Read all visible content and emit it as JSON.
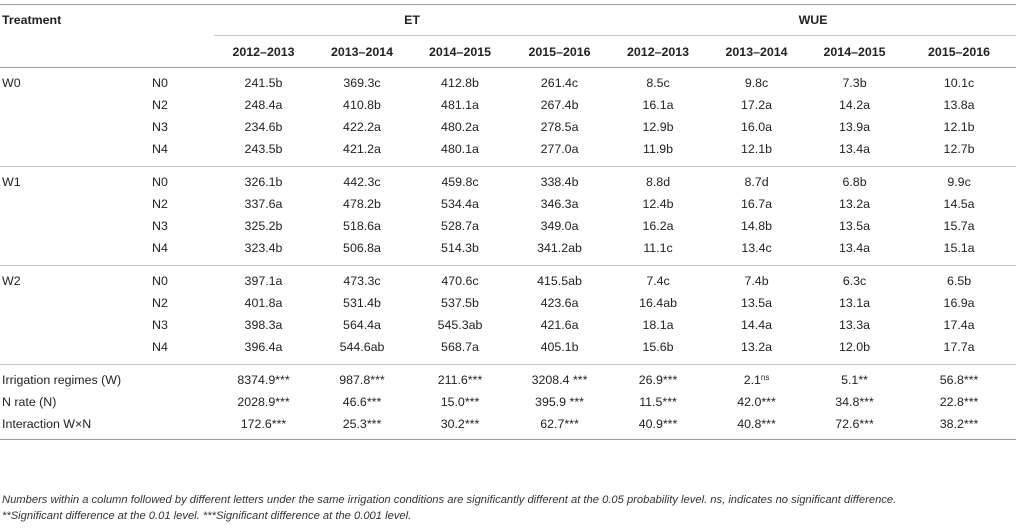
{
  "header": {
    "treatment": "Treatment",
    "et": "ET",
    "wue": "WUE",
    "years": [
      "2012–2013",
      "2013–2014",
      "2014–2015",
      "2015–2016"
    ]
  },
  "groups": [
    {
      "name": "W0",
      "rows": [
        {
          "n": "N0",
          "et": [
            "241.5b",
            "369.3c",
            "412.8b",
            "261.4c"
          ],
          "wue": [
            "8.5c",
            "9.8c",
            "7.3b",
            "10.1c"
          ]
        },
        {
          "n": "N2",
          "et": [
            "248.4a",
            "410.8b",
            "481.1a",
            "267.4b"
          ],
          "wue": [
            "16.1a",
            "17.2a",
            "14.2a",
            "13.8a"
          ]
        },
        {
          "n": "N3",
          "et": [
            "234.6b",
            "422.2a",
            "480.2a",
            "278.5a"
          ],
          "wue": [
            "12.9b",
            "16.0a",
            "13.9a",
            "12.1b"
          ]
        },
        {
          "n": "N4",
          "et": [
            "243.5b",
            "421.2a",
            "480.1a",
            "277.0a"
          ],
          "wue": [
            "11.9b",
            "12.1b",
            "13.4a",
            "12.7b"
          ]
        }
      ]
    },
    {
      "name": "W1",
      "rows": [
        {
          "n": "N0",
          "et": [
            "326.1b",
            "442.3c",
            "459.8c",
            "338.4b"
          ],
          "wue": [
            "8.8d",
            "8.7d",
            "6.8b",
            "9.9c"
          ]
        },
        {
          "n": "N2",
          "et": [
            "337.6a",
            "478.2b",
            "534.4a",
            "346.3a"
          ],
          "wue": [
            "12.4b",
            "16.7a",
            "13.2a",
            "14.5a"
          ]
        },
        {
          "n": "N3",
          "et": [
            "325.2b",
            "518.6a",
            "528.7a",
            "349.0a"
          ],
          "wue": [
            "16.2a",
            "14.8b",
            "13.5a",
            "15.7a"
          ]
        },
        {
          "n": "N4",
          "et": [
            "323.4b",
            "506.8a",
            "514.3b",
            "341.2ab"
          ],
          "wue": [
            "11.1c",
            "13.4c",
            "13.4a",
            "15.1a"
          ]
        }
      ]
    },
    {
      "name": "W2",
      "rows": [
        {
          "n": "N0",
          "et": [
            "397.1a",
            "473.3c",
            "470.6c",
            "415.5ab"
          ],
          "wue": [
            "7.4c",
            "7.4b",
            "6.3c",
            "6.5b"
          ]
        },
        {
          "n": "N2",
          "et": [
            "401.8a",
            "531.4b",
            "537.5b",
            "423.6a"
          ],
          "wue": [
            "16.4ab",
            "13.5a",
            "13.1a",
            "16.9a"
          ]
        },
        {
          "n": "N3",
          "et": [
            "398.3a",
            "564.4a",
            "545.3ab",
            "421.6a"
          ],
          "wue": [
            "18.1a",
            "14.4a",
            "13.3a",
            "17.4a"
          ]
        },
        {
          "n": "N4",
          "et": [
            "396.4a",
            "544.6ab",
            "568.7a",
            "405.1b"
          ],
          "wue": [
            "15.6b",
            "13.2a",
            "12.0b",
            "17.7a"
          ]
        }
      ]
    }
  ],
  "stats": [
    {
      "label": "Irrigation regimes (W)",
      "et": [
        "8374.9***",
        "987.8***",
        "211.6***",
        "3208.4 ***"
      ],
      "wue": [
        {
          "v": "26.9***",
          "sup": ""
        },
        {
          "v": "2.1",
          "sup": "ns"
        },
        {
          "v": "5.1**",
          "sup": ""
        },
        {
          "v": "56.8***",
          "sup": ""
        }
      ]
    },
    {
      "label": "N rate (N)",
      "et": [
        "2028.9***",
        "46.6***",
        "15.0***",
        "395.9 ***"
      ],
      "wue": [
        {
          "v": "11.5***",
          "sup": ""
        },
        {
          "v": "42.0***",
          "sup": ""
        },
        {
          "v": "34.8***",
          "sup": ""
        },
        {
          "v": "22.8***",
          "sup": ""
        }
      ]
    },
    {
      "label": "Interaction W×N",
      "et": [
        "172.6***",
        "25.3***",
        "30.2***",
        "62.7***"
      ],
      "wue": [
        {
          "v": "40.9***",
          "sup": ""
        },
        {
          "v": "40.8***",
          "sup": ""
        },
        {
          "v": "72.6***",
          "sup": ""
        },
        {
          "v": "38.2***",
          "sup": ""
        }
      ]
    }
  ],
  "notes": {
    "line1": "Numbers within a column followed by different letters under the same irrigation conditions are significantly different at the 0.05 probability level. ns, indicates no significant difference.",
    "line2": "**Significant difference at the 0.01 level. ***Significant difference at the 0.001 level."
  }
}
